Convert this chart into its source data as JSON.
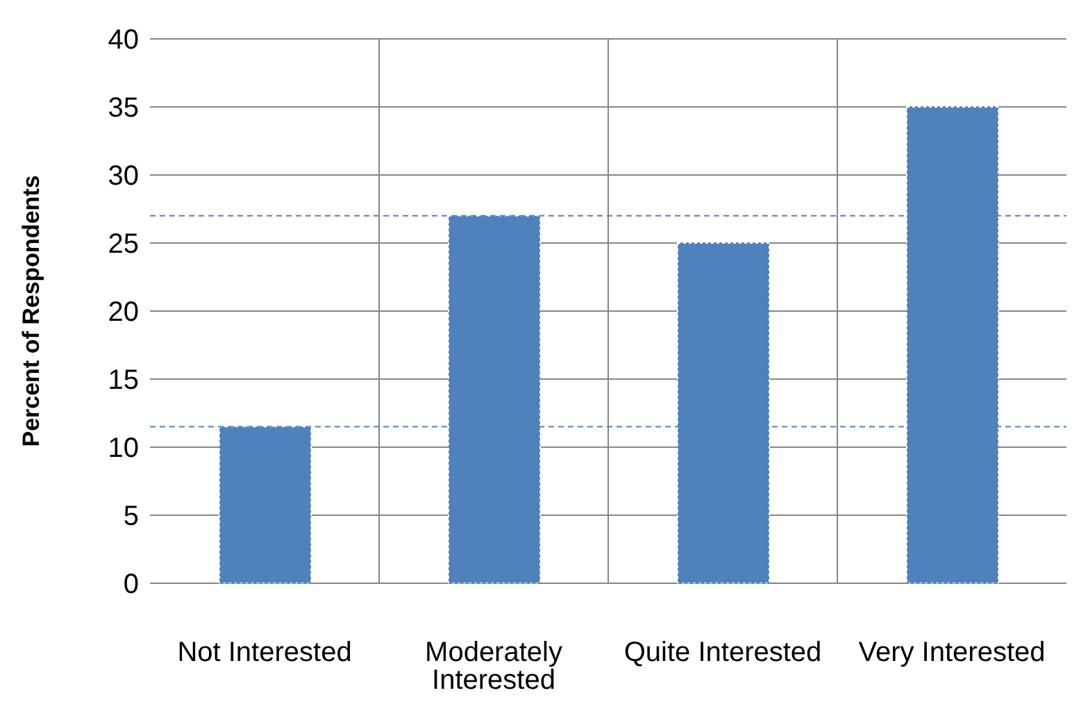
{
  "chart_data": {
    "type": "bar",
    "ylabel": "Percent of Respondents",
    "categories": [
      "Not Interested",
      "Moderately Interested",
      "Quite Interested",
      "Very Interested"
    ],
    "values": [
      11.5,
      27,
      25,
      35
    ],
    "color": "#4f81bd",
    "ylim": [
      0,
      40
    ],
    "yticks": [
      0,
      5,
      10,
      15,
      20,
      25,
      30,
      35,
      40
    ],
    "grid": true,
    "ref_lines": [
      {
        "axis": "y",
        "value": 11.5,
        "color": "#4f81bd",
        "line_style": "dashed"
      },
      {
        "axis": "y",
        "value": 27,
        "color": "#4f81bd",
        "line_style": "dashed"
      }
    ]
  }
}
